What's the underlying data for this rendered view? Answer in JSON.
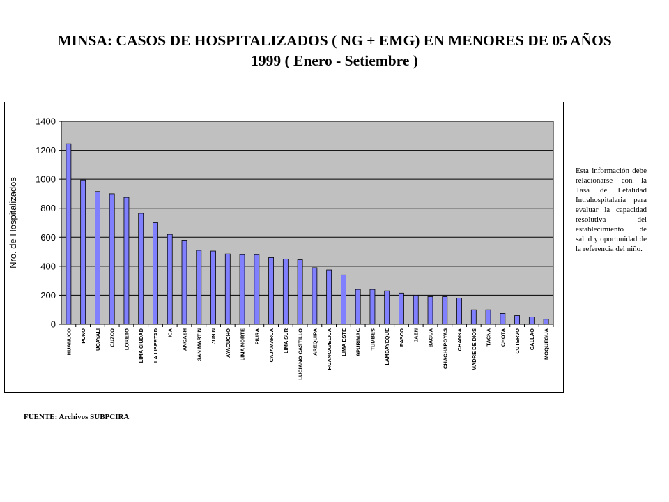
{
  "header": {
    "title_line1": "MINSA: CASOS DE HOSPITALIZADOS ( NG + EMG) EN MENORES DE 05 AÑOS",
    "title_line2": "1999 ( Enero - Setiembre )"
  },
  "note": {
    "text": "Esta información debe relacionarse con la Tasa de Letalidad Intrahospitalaria para evaluar la capacidad resolutiva del establecimiento de salud y oportunidad de la referencia del niño."
  },
  "source": {
    "text": "FUENTE: Archivos SUBPCIRA"
  },
  "colors": {
    "bar": "#8080FF",
    "plot_bg": "#C0C0C0",
    "outline": "#000000"
  },
  "chart_data": {
    "type": "bar",
    "title": "MINSA: CASOS DE HOSPITALIZADOS ( NG + EMG) EN MENORES DE 05 AÑOS 1999 ( Enero - Setiembre )",
    "xlabel": "",
    "ylabel": "Nro. de Hospitalizados",
    "ylim": [
      0,
      1400
    ],
    "yticks": [
      0,
      200,
      400,
      600,
      800,
      1000,
      1200,
      1400
    ],
    "grid": true,
    "legend": "none",
    "categories": [
      "HUANUCO",
      "PUNO",
      "UCAYALI",
      "CUZCO",
      "LORETO",
      "LIMA CIUDAD",
      "LA LIBERTAD",
      "ICA",
      "ANCASH",
      "SAN MARTIN",
      "JUNIN",
      "AYACUCHO",
      "LIMA NORTE",
      "PIURA",
      "CAJAMARCA",
      "LIMA SUR",
      "LUCIANO CASTILLO",
      "AREQUIPA",
      "HUANCAVELICA",
      "LIMA ESTE",
      "APURIMAC",
      "TUMBES",
      "LAMBAYEQUE",
      "PASCO",
      "JAEN",
      "BAGUA",
      "CHACHAPOYAS",
      "CHANKA",
      "MADRE DE DIOS",
      "TACNA",
      "CHOTA",
      "CUTERVO",
      "CALLAO",
      "MOQUEGUA"
    ],
    "values": [
      1245,
      995,
      915,
      900,
      875,
      765,
      700,
      620,
      580,
      510,
      505,
      485,
      480,
      480,
      460,
      450,
      445,
      390,
      375,
      340,
      240,
      240,
      230,
      215,
      200,
      190,
      190,
      180,
      100,
      100,
      75,
      60,
      50,
      35
    ]
  }
}
